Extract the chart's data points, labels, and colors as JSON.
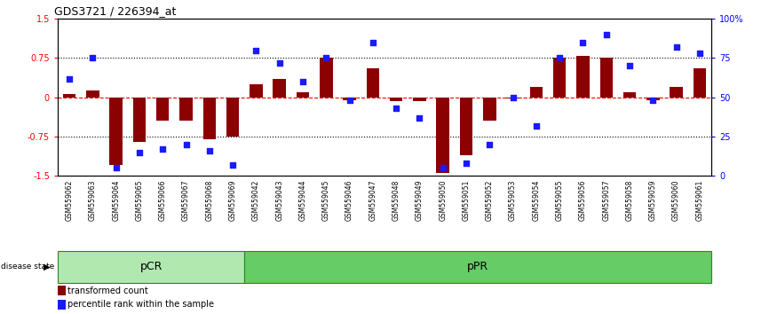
{
  "title": "GDS3721 / 226394_at",
  "samples": [
    "GSM559062",
    "GSM559063",
    "GSM559064",
    "GSM559065",
    "GSM559066",
    "GSM559067",
    "GSM559068",
    "GSM559069",
    "GSM559042",
    "GSM559043",
    "GSM559044",
    "GSM559045",
    "GSM559046",
    "GSM559047",
    "GSM559048",
    "GSM559049",
    "GSM559050",
    "GSM559051",
    "GSM559052",
    "GSM559053",
    "GSM559054",
    "GSM559055",
    "GSM559056",
    "GSM559057",
    "GSM559058",
    "GSM559059",
    "GSM559060",
    "GSM559061"
  ],
  "transformed_count": [
    0.07,
    0.13,
    -1.3,
    -0.85,
    -0.45,
    -0.45,
    -0.8,
    -0.75,
    0.25,
    0.35,
    0.1,
    0.75,
    -0.05,
    0.55,
    -0.08,
    -0.07,
    -1.45,
    -1.1,
    -0.45,
    -0.02,
    0.2,
    0.75,
    0.8,
    0.75,
    0.1,
    -0.05,
    0.2,
    0.55
  ],
  "percentile_rank": [
    62,
    75,
    5,
    15,
    17,
    20,
    16,
    7,
    80,
    72,
    60,
    75,
    48,
    85,
    43,
    37,
    5,
    8,
    20,
    50,
    32,
    75,
    85,
    90,
    70,
    48,
    82,
    78
  ],
  "groups": [
    {
      "label": "pCR",
      "start": 0,
      "end": 8,
      "color": "#90EE90"
    },
    {
      "label": "pPR",
      "start": 8,
      "end": 28,
      "color": "#66CC66"
    }
  ],
  "bar_color": "#8B0000",
  "dot_color": "#1a1aff",
  "pcr_color": "#b0e8b0",
  "ppr_color": "#66CC66",
  "group_edge_color": "#228B22",
  "tick_color_even": "#c0c0c0",
  "tick_color_odd": "#d8d8d8"
}
